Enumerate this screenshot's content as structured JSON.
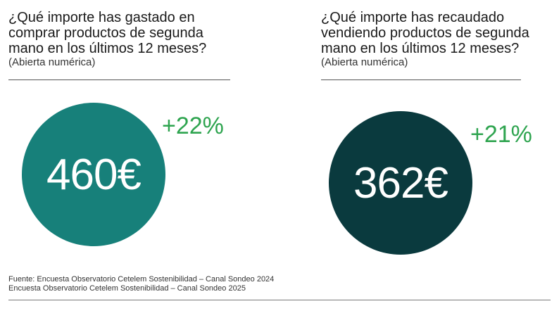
{
  "left": {
    "question": "¿Qué importe has gastado en comprar productos de segunda mano en los últimos 12 meses?",
    "note": "(Abierta numérica)",
    "value": "460€",
    "change": "+22%",
    "color": "#17807a"
  },
  "right": {
    "question": "¿Qué importe has recaudado vendiendo productos de segunda mano en los últimos 12 meses?",
    "note": "(Abierta numérica)",
    "value": "362€",
    "change": "+21%",
    "color": "#0a3a3e"
  },
  "source": {
    "line1": "Fuente: Encuesta Observatorio Cetelem Sostenibilidad – Canal Sondeo 2024",
    "line2": "Encuesta Observatorio Cetelem Sostenibilidad – Canal Sondeo 2025"
  }
}
